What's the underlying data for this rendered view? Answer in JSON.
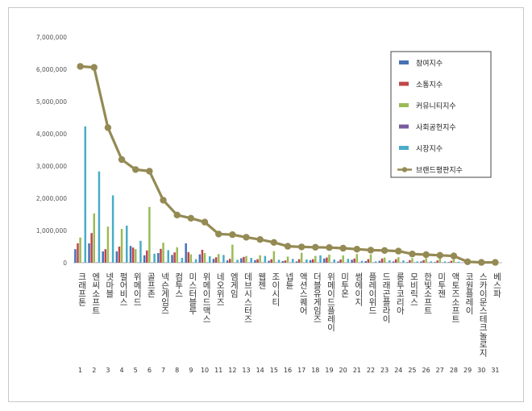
{
  "chart_data": {
    "type": "bar",
    "ylim": [
      0,
      7000000
    ],
    "yticks": [
      "0",
      "1,000,000",
      "2,000,000",
      "3,000,000",
      "4,000,000",
      "5,000,000",
      "6,000,000",
      "7,000,000"
    ],
    "grid": false,
    "legend_position": "top-right",
    "categories": [
      "크래프톤",
      "엔씨소프트",
      "넷마블",
      "펄어비스",
      "위메이드",
      "골프존",
      "넥슨게임즈",
      "컴투스",
      "미스터블루",
      "위메이드맥스",
      "네오위즈",
      "엠게임",
      "데브시스터즈",
      "웹젠",
      "조이시티",
      "넵튠",
      "액션스퀘어",
      "더블유게임즈",
      "위메이드플레이",
      "미투온",
      "썸에이지",
      "플레이위드",
      "드래곤플라이",
      "룽투코리아",
      "모비릭스",
      "한빛소프트",
      "미투젠",
      "액토즈소프트",
      "코원플레이",
      "스카이문스테크놀로지",
      "베스파"
    ],
    "ranks": [
      "1",
      "2",
      "3",
      "4",
      "5",
      "6",
      "7",
      "8",
      "9",
      "10",
      "11",
      "12",
      "13",
      "14",
      "15",
      "16",
      "17",
      "18",
      "19",
      "20",
      "21",
      "22",
      "23",
      "24",
      "25",
      "26",
      "27",
      "28",
      "29",
      "30",
      "31"
    ],
    "series": [
      {
        "name": "참여지수",
        "color": "#4672b4",
        "kind": "bar",
        "values": [
          420000,
          600000,
          350000,
          350000,
          520000,
          230000,
          300000,
          240000,
          600000,
          260000,
          120000,
          70000,
          140000,
          80000,
          60000,
          50000,
          40000,
          80000,
          130000,
          40000,
          90000,
          50000,
          60000,
          40000,
          20000,
          40000,
          20000,
          20000,
          5000,
          5000,
          5000
        ]
      },
      {
        "name": "소통지수",
        "color": "#c0464a",
        "kind": "bar",
        "values": [
          600000,
          920000,
          420000,
          500000,
          470000,
          380000,
          430000,
          320000,
          330000,
          400000,
          170000,
          120000,
          180000,
          110000,
          110000,
          70000,
          110000,
          110000,
          160000,
          100000,
          130000,
          110000,
          130000,
          110000,
          80000,
          80000,
          70000,
          60000,
          20000,
          10000,
          10000
        ]
      },
      {
        "name": "커뮤니티지수",
        "color": "#9bbb57",
        "kind": "bar",
        "values": [
          780000,
          1530000,
          1120000,
          1050000,
          420000,
          1730000,
          620000,
          480000,
          260000,
          300000,
          270000,
          560000,
          210000,
          230000,
          360000,
          190000,
          310000,
          210000,
          250000,
          230000,
          270000,
          260000,
          160000,
          170000,
          140000,
          140000,
          140000,
          120000,
          20000,
          10000,
          10000
        ]
      },
      {
        "name": "사회공헌지수",
        "color": "#7a5c9e",
        "kind": "bar",
        "values": [
          10000,
          10000,
          10000,
          10000,
          10000,
          10000,
          10000,
          10000,
          10000,
          10000,
          10000,
          10000,
          10000,
          10000,
          10000,
          10000,
          10000,
          10000,
          10000,
          10000,
          10000,
          10000,
          10000,
          10000,
          10000,
          10000,
          10000,
          10000,
          5000,
          5000,
          5000
        ]
      },
      {
        "name": "시장지수",
        "color": "#4aacc6",
        "kind": "bar",
        "values": [
          4230000,
          2830000,
          2090000,
          1150000,
          680000,
          280000,
          390000,
          150000,
          110000,
          200000,
          240000,
          90000,
          150000,
          210000,
          90000,
          120000,
          100000,
          230000,
          100000,
          120000,
          60000,
          40000,
          70000,
          70000,
          40000,
          40000,
          40000,
          30000,
          10000,
          5000,
          5000
        ]
      },
      {
        "name": "브랜드평판지수",
        "color": "#948a54",
        "kind": "line",
        "values": [
          6090000,
          6060000,
          4190000,
          3200000,
          2890000,
          2840000,
          1940000,
          1480000,
          1380000,
          1260000,
          890000,
          870000,
          790000,
          720000,
          630000,
          510000,
          490000,
          480000,
          470000,
          450000,
          420000,
          390000,
          380000,
          360000,
          270000,
          250000,
          230000,
          210000,
          30000,
          10000,
          10000
        ]
      }
    ]
  }
}
